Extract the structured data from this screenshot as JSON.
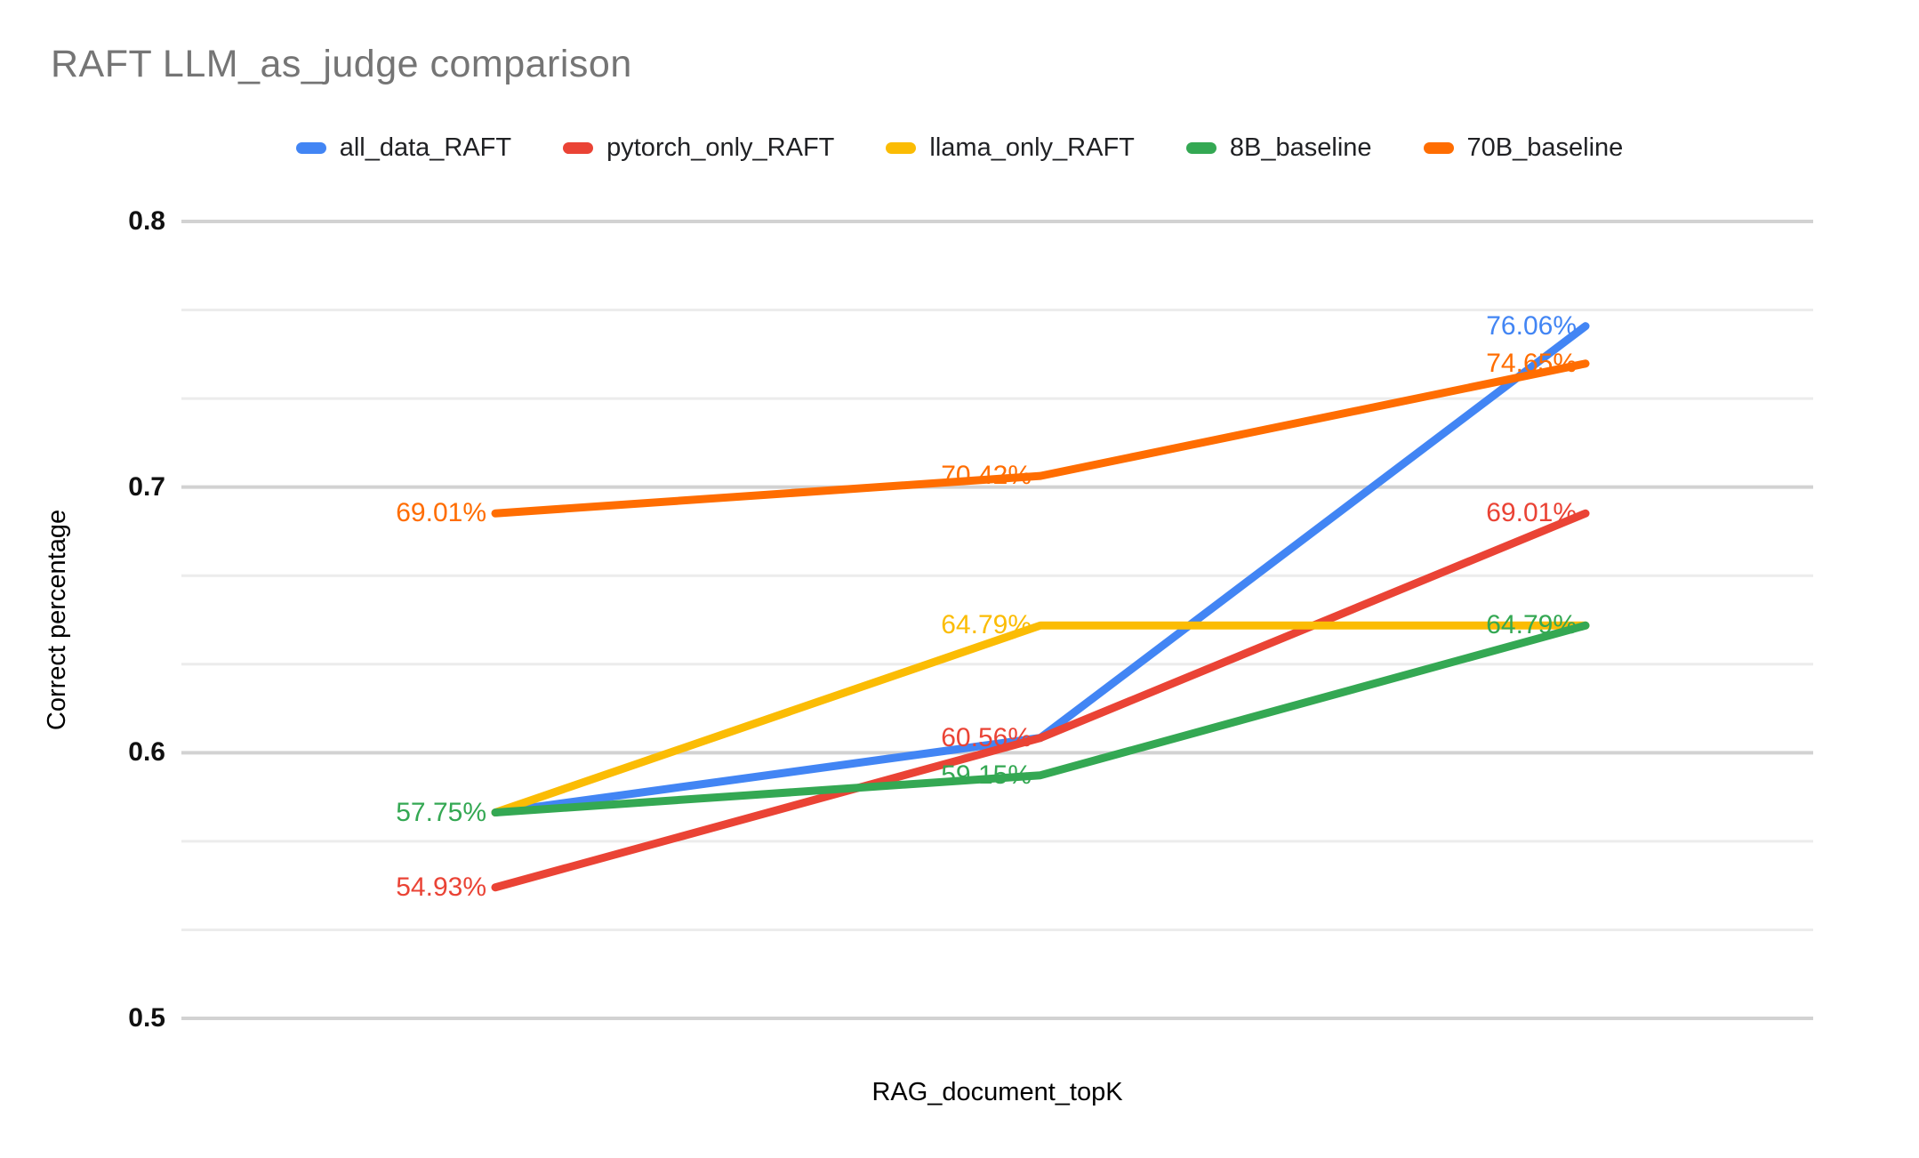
{
  "title": {
    "text": "RAFT LLM_as_judge comparison",
    "color": "#757575"
  },
  "y_axis": {
    "title": "Correct percentage",
    "tick_labels": [
      "0.8",
      "0.7",
      "0.6",
      "0.5"
    ],
    "min": 0.5,
    "max": 0.8
  },
  "x_axis": {
    "title": "RAG_document_topK",
    "tick_labels_visible": false
  },
  "chart_data": {
    "type": "line",
    "smooth": true,
    "title": "RAFT LLM_as_judge comparison",
    "xlabel": "RAG_document_topK",
    "ylabel": "Correct percentage",
    "ylim": [
      0.5,
      0.8
    ],
    "num_points": 3,
    "grid": {
      "major_values": [
        0.8,
        0.7,
        0.6,
        0.5
      ],
      "minor_lines_between_majors": 2,
      "major_color": "#d2d2d2",
      "minor_color": "#ececec"
    },
    "legend_position": "top",
    "series": [
      {
        "name": "all_data_RAFT",
        "color": "#4285F4",
        "values": [
          0.5775,
          0.6056,
          0.7606
        ],
        "point_labels": [
          "",
          "",
          "76.06%"
        ]
      },
      {
        "name": "pytorch_only_RAFT",
        "color": "#EA4335",
        "values": [
          0.5493,
          0.6056,
          0.6901
        ],
        "point_labels": [
          "54.93%",
          "60.56%",
          "69.01%"
        ]
      },
      {
        "name": "llama_only_RAFT",
        "color": "#FBBC04",
        "values": [
          0.5775,
          0.6479,
          0.6479
        ],
        "point_labels": [
          "",
          "64.79%",
          ""
        ]
      },
      {
        "name": "8B_baseline",
        "color": "#34A853",
        "values": [
          0.5775,
          0.5915,
          0.6479
        ],
        "point_labels": [
          "57.75%",
          "59.15%",
          "64.79%"
        ]
      },
      {
        "name": "70B_baseline",
        "color": "#FF6D01",
        "values": [
          0.6901,
          0.7042,
          0.7465
        ],
        "point_labels": [
          "69.01%",
          "70.42%",
          "74.65%"
        ]
      }
    ]
  }
}
